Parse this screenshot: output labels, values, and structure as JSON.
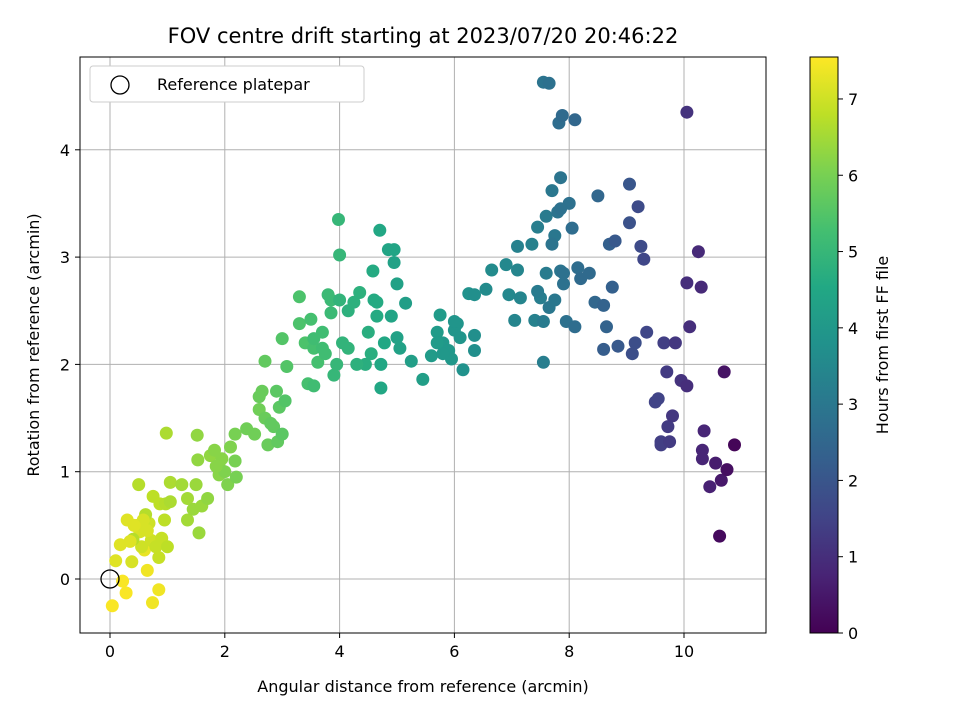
{
  "chart_data": {
    "type": "scatter",
    "title": "FOV centre drift starting at 2023/07/20 20:46:22",
    "xlabel": "Angular distance from reference (arcmin)",
    "ylabel": "Rotation from reference (arcmin)",
    "xlim": [
      -0.5,
      11.5
    ],
    "ylim": [
      -0.5,
      4.7
    ],
    "xticks": [
      0,
      2,
      4,
      6,
      8,
      10
    ],
    "yticks": [
      0,
      1,
      2,
      3,
      4
    ],
    "grid": true,
    "legend": {
      "position": "top-left",
      "entries": [
        "Reference platepar"
      ]
    },
    "reference_point": {
      "x": 0,
      "y": 0
    },
    "colorbar": {
      "label": "Hours from first FF file",
      "min": 0,
      "max": 7.55,
      "ticks": [
        0,
        1,
        2,
        3,
        4,
        5,
        6,
        7
      ],
      "colormap": "viridis"
    },
    "points": [
      [
        0.04,
        -0.25,
        7.5
      ],
      [
        0.22,
        -0.02,
        7.5
      ],
      [
        0.28,
        -0.13,
        7.5
      ],
      [
        0.65,
        0.08,
        7.4
      ],
      [
        0.85,
        -0.1,
        7.4
      ],
      [
        0.74,
        -0.22,
        7.4
      ],
      [
        0.6,
        0.27,
        7.3
      ],
      [
        0.1,
        0.17,
        7.2
      ],
      [
        0.18,
        0.32,
        7.2
      ],
      [
        0.3,
        0.55,
        7.2
      ],
      [
        0.48,
        0.5,
        7.1
      ],
      [
        0.38,
        0.16,
        7.1
      ],
      [
        0.52,
        0.44,
        7.1
      ],
      [
        0.55,
        0.3,
        7.0
      ],
      [
        0.68,
        0.52,
        7.0
      ],
      [
        0.72,
        0.36,
        7.0
      ],
      [
        0.8,
        0.3,
        6.9
      ],
      [
        0.85,
        0.2,
        6.9
      ],
      [
        0.9,
        0.38,
        6.9
      ],
      [
        0.95,
        0.55,
        6.8
      ],
      [
        1.0,
        0.3,
        6.8
      ],
      [
        0.75,
        0.77,
        6.8
      ],
      [
        0.87,
        0.7,
        6.8
      ],
      [
        0.5,
        0.88,
        6.7
      ],
      [
        0.62,
        0.6,
        6.7
      ],
      [
        0.4,
        0.37,
        6.7
      ],
      [
        0.97,
        0.7,
        6.7
      ],
      [
        1.05,
        0.72,
        6.6
      ],
      [
        0.98,
        1.36,
        6.6
      ],
      [
        1.05,
        0.9,
        6.6
      ],
      [
        1.25,
        0.88,
        6.5
      ],
      [
        1.35,
        0.75,
        6.5
      ],
      [
        1.35,
        0.55,
        6.5
      ],
      [
        1.45,
        0.65,
        6.4
      ],
      [
        1.5,
        0.88,
        6.4
      ],
      [
        1.55,
        0.43,
        6.4
      ],
      [
        1.6,
        0.68,
        6.4
      ],
      [
        1.7,
        0.75,
        6.3
      ],
      [
        1.52,
        1.34,
        6.3
      ],
      [
        1.53,
        1.11,
        6.3
      ],
      [
        1.75,
        1.15,
        6.3
      ],
      [
        1.82,
        1.2,
        6.2
      ],
      [
        1.9,
        1.05,
        6.2
      ],
      [
        1.9,
        0.97,
        6.2
      ],
      [
        2.0,
        1.0,
        6.1
      ],
      [
        2.05,
        0.88,
        6.1
      ],
      [
        2.1,
        1.23,
        6.1
      ],
      [
        2.18,
        1.1,
        6.0
      ],
      [
        2.2,
        0.95,
        6.0
      ],
      [
        2.18,
        1.35,
        6.0
      ],
      [
        2.38,
        1.4,
        5.9
      ],
      [
        2.52,
        1.35,
        5.9
      ],
      [
        2.6,
        1.58,
        5.9
      ],
      [
        2.65,
        1.75,
        5.8
      ],
      [
        2.7,
        1.5,
        5.8
      ],
      [
        2.75,
        1.25,
        5.8
      ],
      [
        2.7,
        2.03,
        5.7
      ],
      [
        2.85,
        1.42,
        5.7
      ],
      [
        2.92,
        1.28,
        5.7
      ],
      [
        2.95,
        1.6,
        5.6
      ],
      [
        3.0,
        1.35,
        5.6
      ],
      [
        2.9,
        1.75,
        5.6
      ],
      [
        3.05,
        1.66,
        5.5
      ],
      [
        3.0,
        2.24,
        5.5
      ],
      [
        3.08,
        1.98,
        5.5
      ],
      [
        3.3,
        2.38,
        5.4
      ],
      [
        3.3,
        2.63,
        5.4
      ],
      [
        3.4,
        2.2,
        5.4
      ],
      [
        3.45,
        1.82,
        5.3
      ],
      [
        3.5,
        2.42,
        5.3
      ],
      [
        3.55,
        2.15,
        5.3
      ],
      [
        3.62,
        2.02,
        5.3
      ],
      [
        3.55,
        1.8,
        5.2
      ],
      [
        3.7,
        2.3,
        5.2
      ],
      [
        3.75,
        2.1,
        5.2
      ],
      [
        3.8,
        2.65,
        5.1
      ],
      [
        3.85,
        2.48,
        5.1
      ],
      [
        3.85,
        2.6,
        5.1
      ],
      [
        3.9,
        1.9,
        5.0
      ],
      [
        3.95,
        2.0,
        5.0
      ],
      [
        3.98,
        3.35,
        5.0
      ],
      [
        4.0,
        3.02,
        5.0
      ],
      [
        4.0,
        2.6,
        4.9
      ],
      [
        4.05,
        2.2,
        4.9
      ],
      [
        4.15,
        2.15,
        4.9
      ],
      [
        4.15,
        2.5,
        4.8
      ],
      [
        4.25,
        2.58,
        4.8
      ],
      [
        4.35,
        2.67,
        4.8
      ],
      [
        4.45,
        2.0,
        4.7
      ],
      [
        4.5,
        2.3,
        4.7
      ],
      [
        4.55,
        2.1,
        4.7
      ],
      [
        4.58,
        2.87,
        4.6
      ],
      [
        4.6,
        2.6,
        4.6
      ],
      [
        4.65,
        2.45,
        4.6
      ],
      [
        4.7,
        3.25,
        4.5
      ],
      [
        4.72,
        2.0,
        4.5
      ],
      [
        4.72,
        1.78,
        4.5
      ],
      [
        4.78,
        2.2,
        4.5
      ],
      [
        4.85,
        3.07,
        4.4
      ],
      [
        4.9,
        2.45,
        4.4
      ],
      [
        4.95,
        3.07,
        4.4
      ],
      [
        4.95,
        2.95,
        4.3
      ],
      [
        5.0,
        2.25,
        4.3
      ],
      [
        5.0,
        2.75,
        4.3
      ],
      [
        5.05,
        2.15,
        4.3
      ],
      [
        5.15,
        2.57,
        4.2
      ],
      [
        5.25,
        2.03,
        4.2
      ],
      [
        5.45,
        1.86,
        4.2
      ],
      [
        5.6,
        2.08,
        4.1
      ],
      [
        5.7,
        2.3,
        4.1
      ],
      [
        5.75,
        2.46,
        4.1
      ],
      [
        5.8,
        2.2,
        4.0
      ],
      [
        5.9,
        2.13,
        4.0
      ],
      [
        5.95,
        2.05,
        4.0
      ],
      [
        6.0,
        2.32,
        3.9
      ],
      [
        6.05,
        2.38,
        3.9
      ],
      [
        6.1,
        2.25,
        3.9
      ],
      [
        6.15,
        1.95,
        3.8
      ],
      [
        6.25,
        2.66,
        3.8
      ],
      [
        6.35,
        2.65,
        3.7
      ],
      [
        6.35,
        2.13,
        3.7
      ],
      [
        6.35,
        2.27,
        3.7
      ],
      [
        6.55,
        2.7,
        3.6
      ],
      [
        6.65,
        2.88,
        3.6
      ],
      [
        6.9,
        2.93,
        3.5
      ],
      [
        6.95,
        2.65,
        3.5
      ],
      [
        7.05,
        2.41,
        3.4
      ],
      [
        7.1,
        2.88,
        3.4
      ],
      [
        7.15,
        2.62,
        3.4
      ],
      [
        7.1,
        3.1,
        3.3
      ],
      [
        7.35,
        3.12,
        3.3
      ],
      [
        7.4,
        2.41,
        3.3
      ],
      [
        7.45,
        3.28,
        3.2
      ],
      [
        7.5,
        2.62,
        3.2
      ],
      [
        7.55,
        2.02,
        3.2
      ],
      [
        7.55,
        2.4,
        3.1
      ],
      [
        7.6,
        2.85,
        3.1
      ],
      [
        7.6,
        3.38,
        3.1
      ],
      [
        7.65,
        2.53,
        3.0
      ],
      [
        7.7,
        3.62,
        3.0
      ],
      [
        7.75,
        3.2,
        3.0
      ],
      [
        7.8,
        3.42,
        2.9
      ],
      [
        7.85,
        3.74,
        2.9
      ],
      [
        7.85,
        2.87,
        2.9
      ],
      [
        7.9,
        2.75,
        2.8
      ],
      [
        7.95,
        2.4,
        2.8
      ],
      [
        8.0,
        3.5,
        2.8
      ],
      [
        8.05,
        3.27,
        2.7
      ],
      [
        8.1,
        2.35,
        2.7
      ],
      [
        8.15,
        2.9,
        2.7
      ],
      [
        8.2,
        2.8,
        2.6
      ],
      [
        8.35,
        2.85,
        2.6
      ],
      [
        8.45,
        2.58,
        2.5
      ],
      [
        8.5,
        3.57,
        2.5
      ],
      [
        8.6,
        2.55,
        2.4
      ],
      [
        8.65,
        2.35,
        2.4
      ],
      [
        8.7,
        3.12,
        2.3
      ],
      [
        8.75,
        2.72,
        2.3
      ],
      [
        7.55,
        4.63,
        2.9
      ],
      [
        7.65,
        4.62,
        2.8
      ],
      [
        7.82,
        4.25,
        2.7
      ],
      [
        7.88,
        4.32,
        2.6
      ],
      [
        8.1,
        4.28,
        2.5
      ],
      [
        8.6,
        2.14,
        2.2
      ],
      [
        8.85,
        2.17,
        2.1
      ],
      [
        8.8,
        3.15,
        2.1
      ],
      [
        9.05,
        3.68,
        2.0
      ],
      [
        9.05,
        3.32,
        1.9
      ],
      [
        9.1,
        2.1,
        1.8
      ],
      [
        9.15,
        2.2,
        1.8
      ],
      [
        9.2,
        3.47,
        1.7
      ],
      [
        9.25,
        3.1,
        1.7
      ],
      [
        9.3,
        2.98,
        1.6
      ],
      [
        9.35,
        2.3,
        1.6
      ],
      [
        9.5,
        1.65,
        1.5
      ],
      [
        9.55,
        1.68,
        1.5
      ],
      [
        9.6,
        1.28,
        1.4
      ],
      [
        9.65,
        2.2,
        1.4
      ],
      [
        9.7,
        1.93,
        1.3
      ],
      [
        9.72,
        1.42,
        1.3
      ],
      [
        9.8,
        1.52,
        1.2
      ],
      [
        9.85,
        2.2,
        1.2
      ],
      [
        9.95,
        1.85,
        1.1
      ],
      [
        10.05,
        4.35,
        1.1
      ],
      [
        10.05,
        1.8,
        1.0
      ],
      [
        10.1,
        2.35,
        1.0
      ],
      [
        10.25,
        3.05,
        0.9
      ],
      [
        10.3,
        2.72,
        0.9
      ],
      [
        10.32,
        1.2,
        0.8
      ],
      [
        10.35,
        1.38,
        0.8
      ],
      [
        10.45,
        0.86,
        0.7
      ],
      [
        10.55,
        1.08,
        0.6
      ],
      [
        10.65,
        0.92,
        0.5
      ],
      [
        10.7,
        1.93,
        0.4
      ],
      [
        10.75,
        1.02,
        0.3
      ],
      [
        10.62,
        0.4,
        0.2
      ],
      [
        10.88,
        1.25,
        0.1
      ],
      [
        9.6,
        1.25,
        1.4
      ],
      [
        9.75,
        1.28,
        1.3
      ],
      [
        10.05,
        2.76,
        1.0
      ],
      [
        10.32,
        1.12,
        0.8
      ],
      [
        7.9,
        2.85,
        2.8
      ],
      [
        7.85,
        3.45,
        2.8
      ],
      [
        7.7,
        3.12,
        2.9
      ],
      [
        7.45,
        2.68,
        3.1
      ],
      [
        7.75,
        2.6,
        3.0
      ],
      [
        6.0,
        2.4,
        3.9
      ],
      [
        5.8,
        2.1,
        4.0
      ],
      [
        5.7,
        2.2,
        4.1
      ],
      [
        4.3,
        2.0,
        4.8
      ],
      [
        4.65,
        2.58,
        4.6
      ],
      [
        3.7,
        2.15,
        5.2
      ],
      [
        3.55,
        2.24,
        5.2
      ],
      [
        2.8,
        1.45,
        5.7
      ],
      [
        2.6,
        1.7,
        5.8
      ],
      [
        1.95,
        1.12,
        6.2
      ],
      [
        1.85,
        1.05,
        6.2
      ],
      [
        0.65,
        0.45,
        7.1
      ],
      [
        0.58,
        0.55,
        7.1
      ],
      [
        0.42,
        0.5,
        7.2
      ],
      [
        0.35,
        0.35,
        7.2
      ]
    ]
  }
}
